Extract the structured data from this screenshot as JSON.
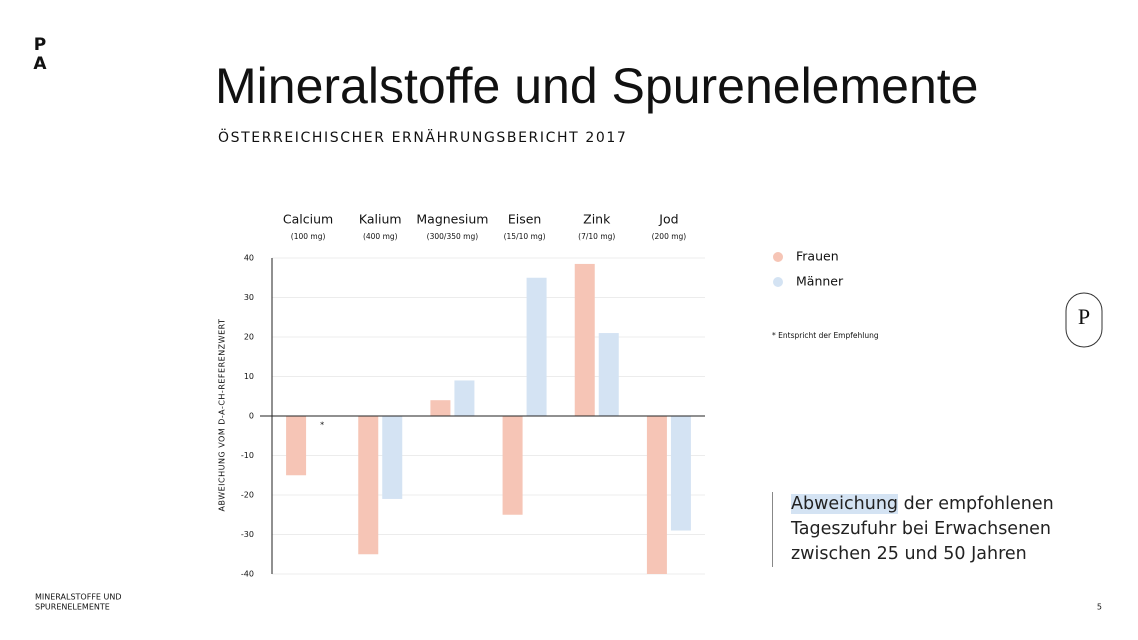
{
  "logo": [
    "P",
    "A"
  ],
  "badge": "P",
  "footer": [
    "MINERALSTOFFE UND",
    "SPURENELEMENTE"
  ],
  "page_number": "5",
  "callout": {
    "highlight": "Abweichung",
    "lines": [
      "der empfohlenen",
      "Tageszufuhr bei Erwachsenen",
      "zwischen 25 und 50 Jahren"
    ]
  },
  "chart_data": {
    "type": "bar",
    "title": "Mineralstoffe und Spurenelemente",
    "subtitle": "ÖSTERREICHISCHER ERNÄHRUNGSBERICHT 2017",
    "y_label": "ABWEICHUNG VOM D-A-CH-REFERENZWERT",
    "categories": [
      "Calcium",
      "Kalium",
      "Magnesium",
      "Eisen",
      "Zink",
      "Jod"
    ],
    "category_notes": [
      "(100 mg)",
      "(400 mg)",
      "(300/350 mg)",
      "(15/10 mg)",
      "(7/10 mg)",
      "(200 mg)"
    ],
    "series": [
      {
        "name": "Frauen",
        "color": "#f6c5b6",
        "values": [
          -15,
          -35,
          4,
          -25,
          38.5,
          -40
        ]
      },
      {
        "name": "Männer",
        "color": "#d4e3f3",
        "values": [
          0,
          -21,
          9,
          35,
          21,
          -29
        ]
      }
    ],
    "marker": "*",
    "footnote": "* Entspricht der Empfehlung",
    "ylim": [
      -40,
      40
    ],
    "yticks": [
      -40,
      -30,
      -20,
      -10,
      0,
      10,
      20,
      30,
      40
    ],
    "grid": true,
    "legend": "right"
  }
}
